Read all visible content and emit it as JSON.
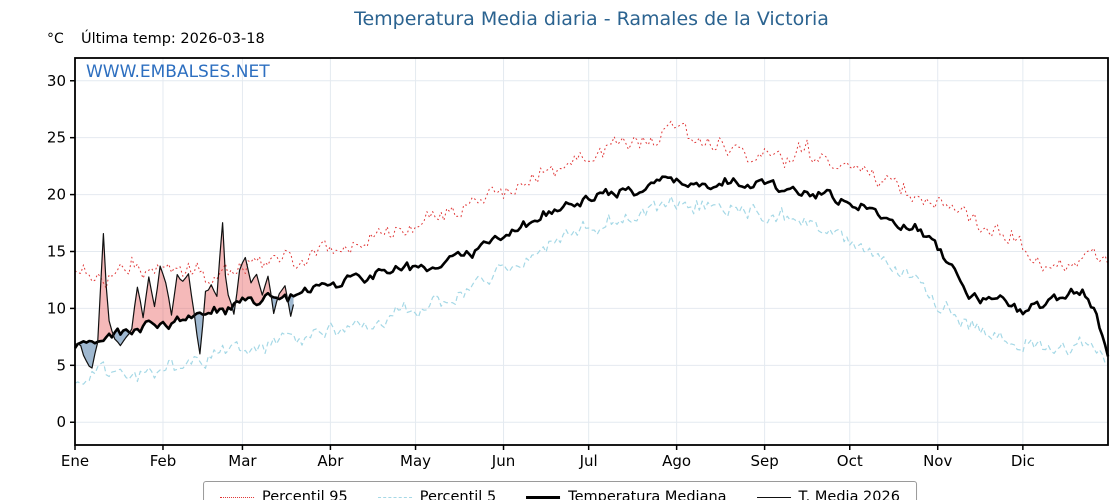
{
  "title": "Temperatura Media diaria - Ramales de la Victoria",
  "y_unit": "°C",
  "last_temp": "Última temp: 2026-03-18",
  "watermark": "WWW.EMBALSES.NET",
  "colors": {
    "title": "#2b6390",
    "watermark": "#2d6fc0",
    "grid": "#e4eaf0",
    "axis": "#000000",
    "percentil95": "#e03535",
    "percentil5": "#a5d8e6",
    "mediana": "#000000",
    "media2026": "#111111",
    "fill_above": "rgba(230,80,80,0.40)",
    "fill_below": "rgba(80,125,170,0.55)"
  },
  "legend": [
    {
      "label": "Percentil 95",
      "sample_css": "1.5px dotted #e03535"
    },
    {
      "label": "Percentil 5",
      "sample_css": "1.5px dashed #a5d8e6"
    },
    {
      "label": "Temperatura Mediana",
      "sample_css": "3px solid #000000"
    },
    {
      "label": "T. Media 2026",
      "sample_css": "1.5px solid #111111"
    }
  ],
  "chart_data": {
    "type": "line",
    "title": "Temperatura Media diaria - Ramales de la Victoria",
    "x_months": [
      "Ene",
      "Feb",
      "Mar",
      "Abr",
      "May",
      "Jun",
      "Jul",
      "Ago",
      "Sep",
      "Oct",
      "Nov",
      "Dic"
    ],
    "month_start_days": [
      0,
      31,
      59,
      90,
      120,
      151,
      181,
      212,
      243,
      273,
      304,
      334
    ],
    "days_in_year": 365,
    "yticks": [
      0,
      5,
      10,
      15,
      20,
      25,
      30
    ],
    "ylim": [
      -2,
      32
    ],
    "grid": true,
    "legend_position": "bottom",
    "fill_between": {
      "series_a": "T. Media 2026",
      "series_b": "Temperatura Mediana",
      "above_color": "rgba(230,80,80,0.40)",
      "below_color": "rgba(80,125,170,0.55)"
    },
    "series": [
      {
        "name": "Percentil 95",
        "color": "#e03535",
        "width": 1,
        "dash": "1.8 2.8",
        "noise_amp": 1.3,
        "seed": 11,
        "anchors": [
          [
            0,
            13.5
          ],
          [
            10,
            12.5
          ],
          [
            20,
            14
          ],
          [
            31,
            12.8
          ],
          [
            40,
            13.2
          ],
          [
            50,
            12.5
          ],
          [
            59,
            13.5
          ],
          [
            70,
            14.5
          ],
          [
            80,
            14
          ],
          [
            90,
            15.5
          ],
          [
            100,
            16
          ],
          [
            110,
            16.5
          ],
          [
            120,
            17.5
          ],
          [
            135,
            18.5
          ],
          [
            151,
            20.5
          ],
          [
            160,
            21.5
          ],
          [
            166,
            22
          ],
          [
            181,
            23.5
          ],
          [
            196,
            24.5
          ],
          [
            206,
            25
          ],
          [
            212,
            25.8
          ],
          [
            220,
            24.5
          ],
          [
            227,
            24.8
          ],
          [
            235,
            23.5
          ],
          [
            243,
            24
          ],
          [
            250,
            23
          ],
          [
            258,
            23.8
          ],
          [
            265,
            22.5
          ],
          [
            273,
            23
          ],
          [
            280,
            21.5
          ],
          [
            288,
            21
          ],
          [
            296,
            20
          ],
          [
            304,
            19.5
          ],
          [
            312,
            18.5
          ],
          [
            319,
            17.5
          ],
          [
            326,
            16.5
          ],
          [
            334,
            15.5
          ],
          [
            341,
            14.5
          ],
          [
            349,
            14
          ],
          [
            356,
            14.5
          ],
          [
            364,
            13.8
          ]
        ]
      },
      {
        "name": "Percentil 5",
        "color": "#a5d8e6",
        "width": 1.2,
        "dash": "5 3.2",
        "noise_amp": 1.1,
        "seed": 22,
        "anchors": [
          [
            0,
            3.8
          ],
          [
            10,
            4.5
          ],
          [
            20,
            4
          ],
          [
            31,
            5
          ],
          [
            45,
            5.5
          ],
          [
            59,
            6.5
          ],
          [
            74,
            7
          ],
          [
            90,
            8
          ],
          [
            105,
            8.8
          ],
          [
            120,
            10
          ],
          [
            135,
            11
          ],
          [
            151,
            13.5
          ],
          [
            166,
            15.5
          ],
          [
            181,
            17
          ],
          [
            196,
            18.3
          ],
          [
            212,
            19.3
          ],
          [
            227,
            18.8
          ],
          [
            243,
            18.3
          ],
          [
            258,
            17.3
          ],
          [
            273,
            15.8
          ],
          [
            288,
            13.5
          ],
          [
            296,
            12.5
          ],
          [
            304,
            10.5
          ],
          [
            312,
            9
          ],
          [
            319,
            8
          ],
          [
            326,
            7.5
          ],
          [
            334,
            7
          ],
          [
            341,
            6.8
          ],
          [
            349,
            6.5
          ],
          [
            356,
            6.8
          ],
          [
            364,
            5
          ]
        ]
      },
      {
        "name": "Temperatura Mediana",
        "color": "#000000",
        "width": 2.6,
        "dash": "",
        "noise_amp": 0.7,
        "seed": 33,
        "anchors": [
          [
            0,
            7
          ],
          [
            8,
            7.5
          ],
          [
            15,
            8
          ],
          [
            22,
            8.3
          ],
          [
            31,
            8.6
          ],
          [
            38,
            9
          ],
          [
            45,
            9.6
          ],
          [
            52,
            10
          ],
          [
            59,
            10.6
          ],
          [
            66,
            10.8
          ],
          [
            74,
            11
          ],
          [
            82,
            11.5
          ],
          [
            90,
            12
          ],
          [
            100,
            12.6
          ],
          [
            110,
            13.2
          ],
          [
            120,
            13.6
          ],
          [
            130,
            14.2
          ],
          [
            140,
            15
          ],
          [
            151,
            16.2
          ],
          [
            160,
            17.5
          ],
          [
            166,
            18.5
          ],
          [
            173,
            19
          ],
          [
            181,
            19.6
          ],
          [
            190,
            20
          ],
          [
            196,
            20.4
          ],
          [
            205,
            21
          ],
          [
            212,
            21.6
          ],
          [
            220,
            21
          ],
          [
            227,
            21.2
          ],
          [
            235,
            20.8
          ],
          [
            243,
            21
          ],
          [
            250,
            20.6
          ],
          [
            258,
            20.4
          ],
          [
            265,
            20
          ],
          [
            273,
            19.4
          ],
          [
            280,
            18.6
          ],
          [
            288,
            17.6
          ],
          [
            296,
            17
          ],
          [
            304,
            15.4
          ],
          [
            310,
            13
          ],
          [
            316,
            11
          ],
          [
            319,
            10.6
          ],
          [
            323,
            11
          ],
          [
            326,
            10.8
          ],
          [
            330,
            10
          ],
          [
            334,
            9.8
          ],
          [
            338,
            10.4
          ],
          [
            341,
            10.2
          ],
          [
            345,
            10.8
          ],
          [
            349,
            11
          ],
          [
            353,
            11.4
          ],
          [
            356,
            11.2
          ],
          [
            360,
            9.6
          ],
          [
            364,
            5.6
          ]
        ]
      },
      {
        "name": "T. Media 2026",
        "color": "#111111",
        "width": 1.2,
        "dash": "",
        "noise_amp": 0.3,
        "seed": 44,
        "day_range": [
          0,
          77
        ],
        "anchors": [
          [
            0,
            7
          ],
          [
            2,
            6.6
          ],
          [
            4,
            5.2
          ],
          [
            6,
            4.8
          ],
          [
            8,
            7
          ],
          [
            10,
            16.4
          ],
          [
            11,
            12
          ],
          [
            12,
            9
          ],
          [
            14,
            7.2
          ],
          [
            16,
            6.8
          ],
          [
            18,
            7.4
          ],
          [
            20,
            8.2
          ],
          [
            22,
            11.8
          ],
          [
            24,
            9.2
          ],
          [
            26,
            12.8
          ],
          [
            28,
            10.2
          ],
          [
            30,
            13.6
          ],
          [
            32,
            12.2
          ],
          [
            34,
            9.4
          ],
          [
            36,
            12.8
          ],
          [
            38,
            12.4
          ],
          [
            40,
            13.2
          ],
          [
            42,
            9.6
          ],
          [
            44,
            5.9
          ],
          [
            46,
            11.4
          ],
          [
            48,
            12
          ],
          [
            50,
            11
          ],
          [
            52,
            17.5
          ],
          [
            53,
            13
          ],
          [
            54,
            11.2
          ],
          [
            56,
            9.6
          ],
          [
            58,
            13.4
          ],
          [
            60,
            14.4
          ],
          [
            62,
            12.2
          ],
          [
            64,
            13
          ],
          [
            66,
            11.2
          ],
          [
            68,
            12.8
          ],
          [
            70,
            9.6
          ],
          [
            72,
            11.4
          ],
          [
            74,
            12
          ],
          [
            76,
            9.2
          ],
          [
            77,
            10.2
          ]
        ]
      }
    ]
  }
}
